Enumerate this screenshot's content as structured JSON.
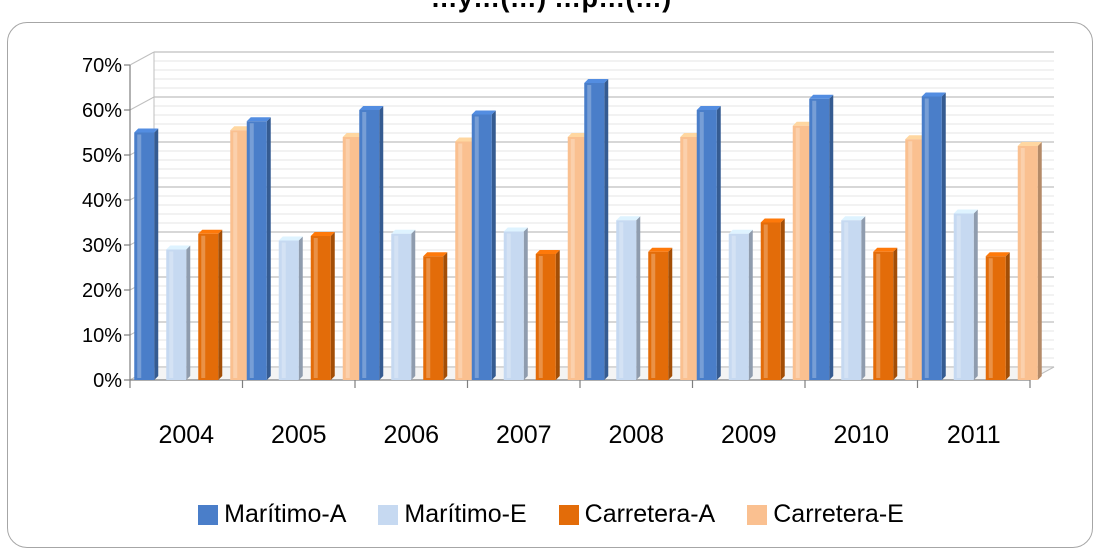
{
  "title": "…y…(…) …p…(…)",
  "chart_data": {
    "type": "bar",
    "categories": [
      "2004",
      "2005",
      "2006",
      "2007",
      "2008",
      "2009",
      "2010",
      "2011"
    ],
    "series": [
      {
        "name": "Marítimo-A",
        "values": [
          55,
          57.5,
          60,
          59,
          66,
          60,
          62.5,
          63
        ]
      },
      {
        "name": "Marítimo-E",
        "values": [
          29,
          31,
          32.5,
          33,
          35.5,
          32.5,
          35.5,
          37
        ]
      },
      {
        "name": "Carretera-A",
        "values": [
          32.5,
          32,
          27.5,
          28,
          28.5,
          35,
          28.5,
          27.5
        ]
      },
      {
        "name": "Carretera-E",
        "values": [
          55.5,
          54,
          53,
          54,
          54,
          56.5,
          53.5,
          52
        ]
      }
    ],
    "yticks": [
      "0%",
      "10%",
      "20%",
      "30%",
      "40%",
      "50%",
      "60%",
      "70%"
    ],
    "ylim": [
      0,
      70
    ],
    "legend_position": "bottom",
    "grid": true,
    "colors": [
      "#4a7ec9",
      "#c6d9f1",
      "#e36c09",
      "#fac090"
    ]
  }
}
